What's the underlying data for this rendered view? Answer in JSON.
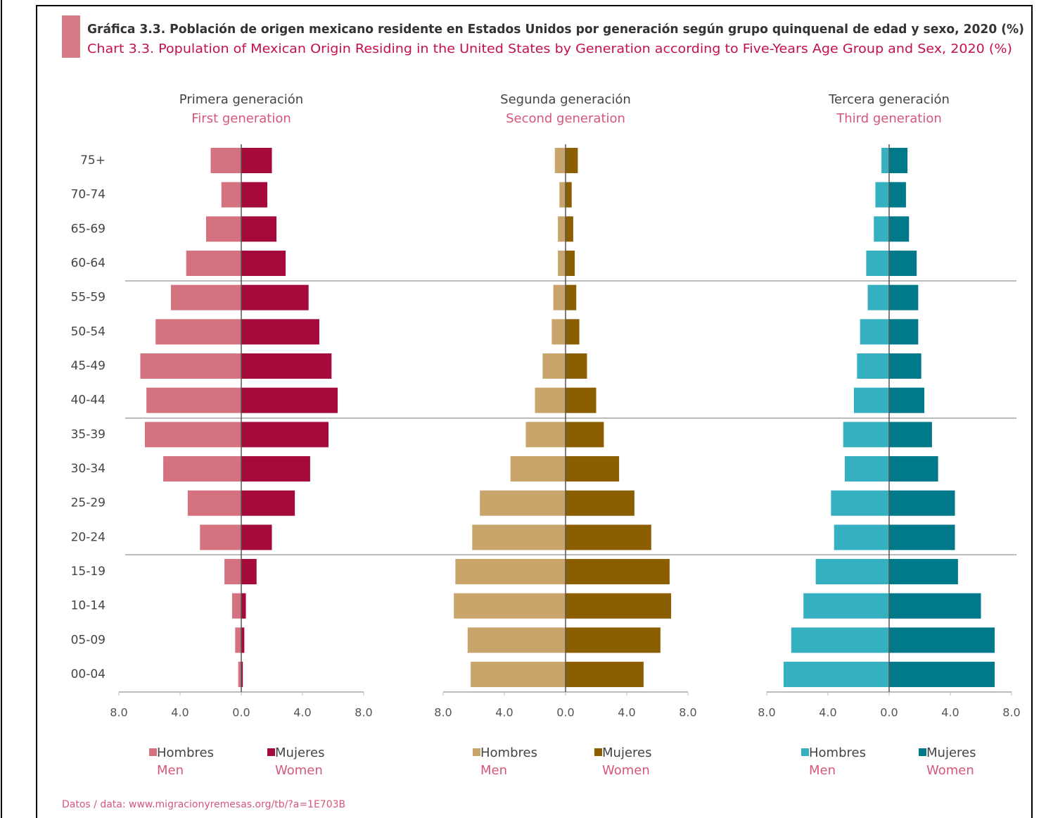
{
  "title": "Gráfica 3.3. Población de origen mexicano residente en Estados Unidos por generación según grupo quinquenal de edad y sexo, 2020 (%)",
  "subtitle": "Chart 3.3. Population of Mexican Origin Residing in the United States by Generation according to Five-Years Age Group and Sex, 2020 (%)",
  "source": "Datos / data: www.migracionyremesas.org/tb/?a=1E703B",
  "chart_data": [
    {
      "type": "pyramid",
      "title": "Primera generación",
      "subtitle": "First generation",
      "categories": [
        "75+",
        "70-74",
        "65-69",
        "60-64",
        "55-59",
        "50-54",
        "45-49",
        "40-44",
        "35-39",
        "30-34",
        "25-29",
        "20-24",
        "15-19",
        "10-14",
        "05-09",
        "00-04"
      ],
      "xlim": [
        -8,
        8
      ],
      "xticks": [
        {
          "value": -8,
          "label": "8.0"
        },
        {
          "value": -4,
          "label": "4.0"
        },
        {
          "value": 0,
          "label": "0.0"
        },
        {
          "value": 4,
          "label": "4.0"
        },
        {
          "value": 8,
          "label": "8.0"
        }
      ],
      "series": [
        {
          "name": "Hombres",
          "translation": "Men",
          "color": "#d4737f",
          "values": [
            2.0,
            1.3,
            2.3,
            3.6,
            4.6,
            5.6,
            6.6,
            6.2,
            6.3,
            5.1,
            3.5,
            2.7,
            1.1,
            0.6,
            0.4,
            0.2
          ]
        },
        {
          "name": "Mujeres",
          "translation": "Women",
          "color": "#a50a3a",
          "values": [
            2.0,
            1.7,
            2.3,
            2.9,
            4.4,
            5.1,
            5.9,
            6.3,
            5.7,
            4.5,
            3.5,
            2.0,
            1.0,
            0.3,
            0.2,
            0.1
          ]
        }
      ]
    },
    {
      "type": "pyramid",
      "title": "Segunda generación",
      "subtitle": "Second generation",
      "xlim": [
        -8,
        8
      ],
      "xticks": [
        {
          "value": -8,
          "label": "8.0"
        },
        {
          "value": -4,
          "label": "4.0"
        },
        {
          "value": 0,
          "label": "0.0"
        },
        {
          "value": 4,
          "label": "4.0"
        },
        {
          "value": 8,
          "label": "8.0"
        }
      ],
      "series": [
        {
          "name": "Hombres",
          "translation": "Men",
          "color": "#c9a46b",
          "values": [
            0.7,
            0.4,
            0.5,
            0.5,
            0.8,
            0.9,
            1.5,
            2.0,
            2.6,
            3.6,
            5.6,
            6.1,
            7.2,
            7.3,
            6.4,
            6.2
          ]
        },
        {
          "name": "Mujeres",
          "translation": "Women",
          "color": "#8b5e00",
          "values": [
            0.8,
            0.4,
            0.5,
            0.6,
            0.7,
            0.9,
            1.4,
            2.0,
            2.5,
            3.5,
            4.5,
            5.6,
            6.8,
            6.9,
            6.2,
            5.1
          ]
        }
      ]
    },
    {
      "type": "pyramid",
      "title": "Tercera generación",
      "subtitle": "Third generation",
      "xlim": [
        -8,
        8
      ],
      "xticks": [
        {
          "value": -8,
          "label": "8.0"
        },
        {
          "value": -4,
          "label": "4.0"
        },
        {
          "value": 0,
          "label": "0.0"
        },
        {
          "value": 4,
          "label": "4.0"
        },
        {
          "value": 8,
          "label": "8.0"
        }
      ],
      "series": [
        {
          "name": "Hombres",
          "translation": "Men",
          "color": "#35b0c0",
          "values": [
            0.5,
            0.9,
            1.0,
            1.5,
            1.4,
            1.9,
            2.1,
            2.3,
            3.0,
            2.9,
            3.8,
            3.6,
            4.8,
            5.6,
            6.4,
            6.9
          ]
        },
        {
          "name": "Mujeres",
          "translation": "Women",
          "color": "#007a8a",
          "values": [
            1.2,
            1.1,
            1.3,
            1.8,
            1.9,
            1.9,
            2.1,
            2.3,
            2.8,
            3.2,
            4.3,
            4.3,
            4.5,
            6.0,
            6.9,
            6.9
          ]
        }
      ]
    }
  ]
}
